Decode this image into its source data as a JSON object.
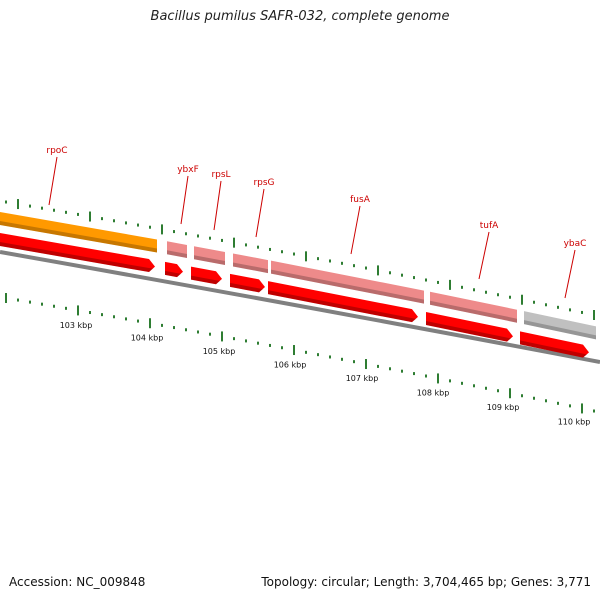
{
  "title": "Bacillus pumilus SAFR-032, complete genome",
  "footer": {
    "accession": "Accession: NC_009848",
    "summary": "Topology: circular; Length: 3,704,465 bp; Genes: 3,771"
  },
  "colors": {
    "background": "#ffffff",
    "backbone": "#808080",
    "cds": "#ff0000",
    "rna_or_gene_light": "#ee8a8a",
    "highlight_gene": "#ff9900",
    "unknown_gene": "#c0c0c0",
    "tick": "#2e7d32",
    "label": "#cc0000"
  },
  "scale": {
    "unit": "kbp",
    "labels": [
      "103 kbp",
      "104 kbp",
      "105 kbp",
      "106 kbp",
      "107 kbp",
      "108 kbp",
      "109 kbp",
      "110 kbp"
    ]
  },
  "genes": [
    {
      "name": "rpoC",
      "color": "highlight_gene"
    },
    {
      "name": "ybxF",
      "color": "rna_or_gene_light"
    },
    {
      "name": "rpsL",
      "color": "rna_or_gene_light"
    },
    {
      "name": "rpsG",
      "color": "rna_or_gene_light"
    },
    {
      "name": "fusA",
      "color": "rna_or_gene_light"
    },
    {
      "name": "tufA",
      "color": "rna_or_gene_light"
    },
    {
      "name": "ybaC",
      "color": "unknown_gene"
    }
  ]
}
